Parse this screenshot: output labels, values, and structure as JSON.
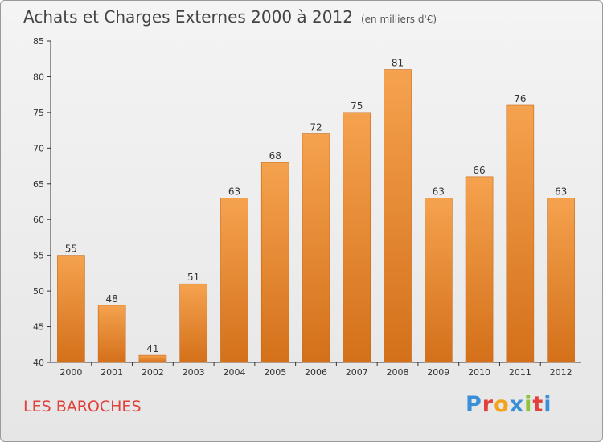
{
  "chart_data": {
    "type": "bar",
    "title": "Achats et Charges Externes 2000 à 2012",
    "unit": "(en milliers d'€)",
    "categories": [
      "2000",
      "2001",
      "2002",
      "2003",
      "2004",
      "2005",
      "2006",
      "2007",
      "2008",
      "2009",
      "2010",
      "2011",
      "2012"
    ],
    "values": [
      55,
      48,
      41,
      51,
      63,
      68,
      72,
      75,
      81,
      63,
      66,
      76,
      63
    ],
    "ylim": [
      40,
      85
    ],
    "yticks": [
      40,
      45,
      50,
      55,
      60,
      65,
      70,
      75,
      80,
      85
    ],
    "grid": false,
    "bar_color_top": "#f5a24e",
    "bar_color_bottom": "#d4701a"
  },
  "commune": "LES BAROCHES",
  "logo": {
    "letters": [
      "P",
      "r",
      "o",
      "x",
      "i",
      "t",
      "i"
    ],
    "colors": [
      "#3a8fd8",
      "#e2403a",
      "#f3a21b",
      "#3a8fd8",
      "#8cc43c",
      "#e2403a",
      "#3a8fd8"
    ]
  }
}
